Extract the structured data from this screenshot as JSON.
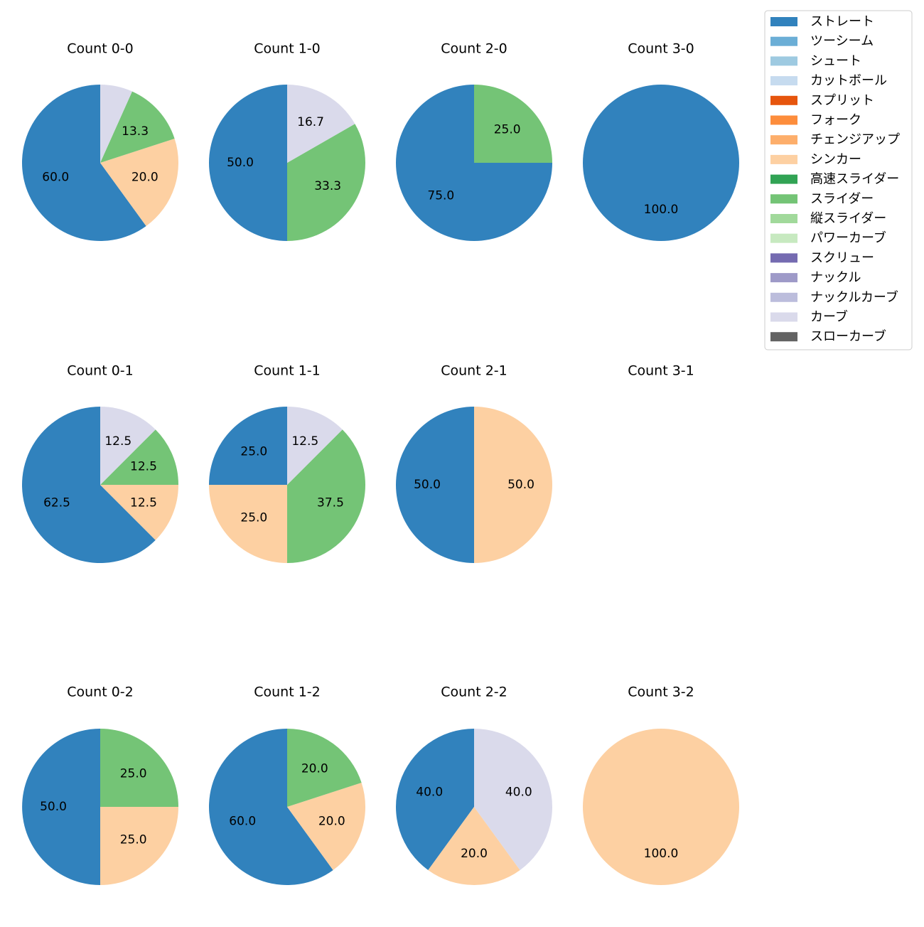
{
  "chart_data": {
    "type": "pie",
    "legend_position": "top-right",
    "legend": [
      {
        "name": "ストレート",
        "color": "#3182bd"
      },
      {
        "name": "ツーシーム",
        "color": "#6baed6"
      },
      {
        "name": "シュート",
        "color": "#9ecae1"
      },
      {
        "name": "カットボール",
        "color": "#c6dbef"
      },
      {
        "name": "スプリット",
        "color": "#e6550d"
      },
      {
        "name": "フォーク",
        "color": "#fd8d3c"
      },
      {
        "name": "チェンジアップ",
        "color": "#fdae6b"
      },
      {
        "name": "シンカー",
        "color": "#fdd0a2"
      },
      {
        "name": "高速スライダー",
        "color": "#31a354"
      },
      {
        "name": "スライダー",
        "color": "#74c476"
      },
      {
        "name": "縦スライダー",
        "color": "#a1d99b"
      },
      {
        "name": "パワーカーブ",
        "color": "#c7e9c0"
      },
      {
        "name": "スクリュー",
        "color": "#756bb1"
      },
      {
        "name": "ナックル",
        "color": "#9e9ac8"
      },
      {
        "name": "ナックルカーブ",
        "color": "#bcbddc"
      },
      {
        "name": "カーブ",
        "color": "#dadaeb"
      },
      {
        "name": "スローカーブ",
        "color": "#636363"
      }
    ],
    "charts": [
      {
        "title": "Count 0-0",
        "slices": [
          {
            "pitch": "ストレート",
            "value": 60.0
          },
          {
            "pitch": "シンカー",
            "value": 20.0
          },
          {
            "pitch": "スライダー",
            "value": 13.3
          },
          {
            "pitch": "カーブ",
            "value": 6.7,
            "label": ""
          }
        ]
      },
      {
        "title": "Count 1-0",
        "slices": [
          {
            "pitch": "ストレート",
            "value": 50.0
          },
          {
            "pitch": "スライダー",
            "value": 33.3
          },
          {
            "pitch": "カーブ",
            "value": 16.7
          }
        ]
      },
      {
        "title": "Count 2-0",
        "slices": [
          {
            "pitch": "ストレート",
            "value": 75.0
          },
          {
            "pitch": "スライダー",
            "value": 25.0
          }
        ]
      },
      {
        "title": "Count 3-0",
        "slices": [
          {
            "pitch": "ストレート",
            "value": 100.0
          }
        ]
      },
      {
        "title": "Count 0-1",
        "slices": [
          {
            "pitch": "ストレート",
            "value": 62.5
          },
          {
            "pitch": "シンカー",
            "value": 12.5
          },
          {
            "pitch": "スライダー",
            "value": 12.5
          },
          {
            "pitch": "カーブ",
            "value": 12.5
          }
        ]
      },
      {
        "title": "Count 1-1",
        "slices": [
          {
            "pitch": "ストレート",
            "value": 25.0
          },
          {
            "pitch": "シンカー",
            "value": 25.0
          },
          {
            "pitch": "スライダー",
            "value": 37.5
          },
          {
            "pitch": "カーブ",
            "value": 12.5
          }
        ]
      },
      {
        "title": "Count 2-1",
        "slices": [
          {
            "pitch": "ストレート",
            "value": 50.0
          },
          {
            "pitch": "シンカー",
            "value": 50.0
          }
        ]
      },
      {
        "title": "Count 3-1",
        "slices": []
      },
      {
        "title": "Count 0-2",
        "slices": [
          {
            "pitch": "ストレート",
            "value": 50.0
          },
          {
            "pitch": "シンカー",
            "value": 25.0
          },
          {
            "pitch": "スライダー",
            "value": 25.0
          }
        ]
      },
      {
        "title": "Count 1-2",
        "slices": [
          {
            "pitch": "ストレート",
            "value": 60.0
          },
          {
            "pitch": "シンカー",
            "value": 20.0
          },
          {
            "pitch": "スライダー",
            "value": 20.0
          }
        ]
      },
      {
        "title": "Count 2-2",
        "slices": [
          {
            "pitch": "ストレート",
            "value": 40.0
          },
          {
            "pitch": "シンカー",
            "value": 20.0
          },
          {
            "pitch": "カーブ",
            "value": 40.0
          }
        ]
      },
      {
        "title": "Count 3-2",
        "slices": [
          {
            "pitch": "シンカー",
            "value": 100.0
          }
        ]
      }
    ]
  }
}
